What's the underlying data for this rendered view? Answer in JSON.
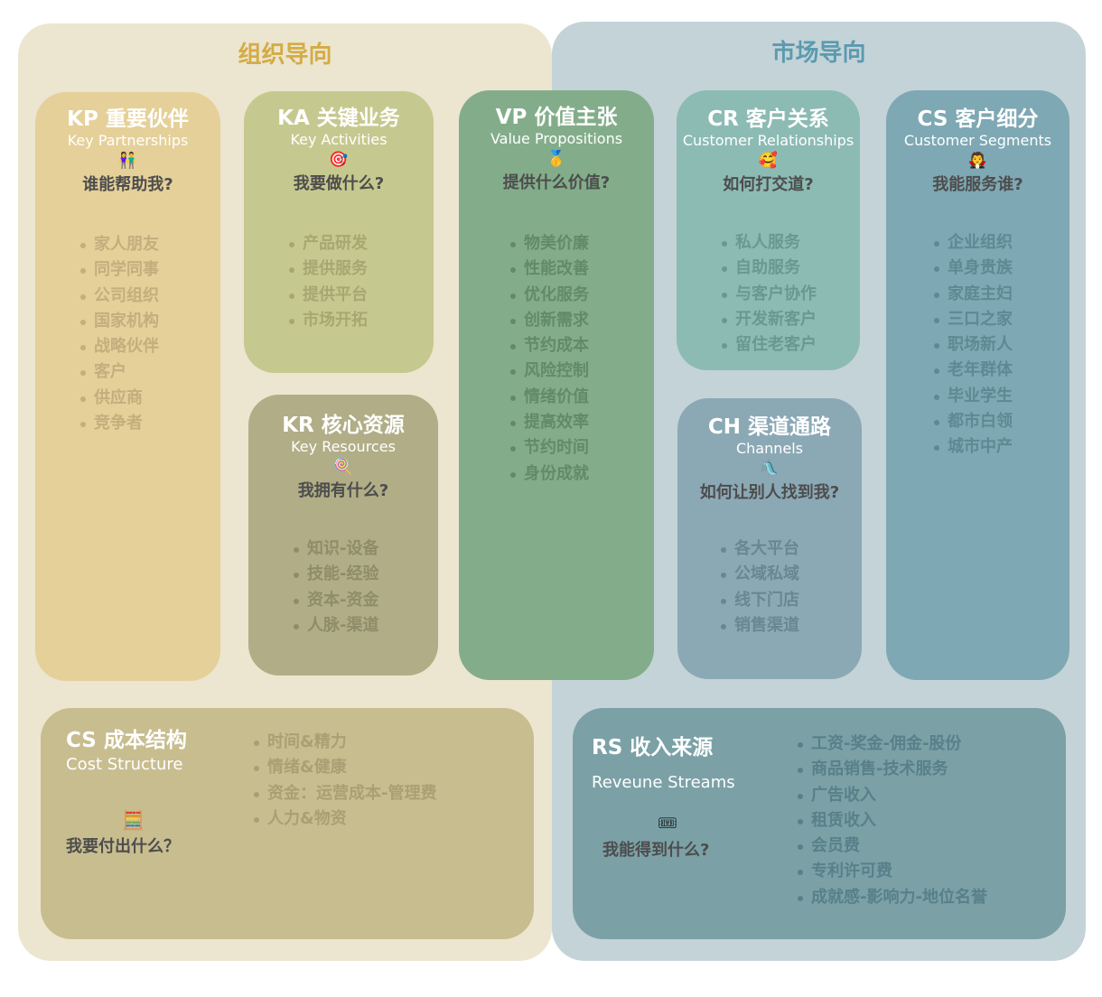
{
  "regions": {
    "organization": {
      "title": "组织导向",
      "color": "#d4ac45"
    },
    "market": {
      "title": "市场导向",
      "color": "#5b9aaf"
    }
  },
  "cards": {
    "kp": {
      "title": "KP 重要伙伴",
      "subtitle": "Key Partnerships",
      "icon": "👫",
      "question": "谁能帮助我?",
      "items": [
        "家人朋友",
        "同学同事",
        "公司组织",
        "国家机构",
        "战略伙伴",
        "客户",
        "供应商",
        "竞争者"
      ]
    },
    "ka": {
      "title": "KA 关键业务",
      "subtitle": "Key Activities",
      "icon": "🎯",
      "question": "我要做什么?",
      "items": [
        "产品研发",
        "提供服务",
        "提供平台",
        "市场开拓"
      ]
    },
    "kr": {
      "title": "KR 核心资源",
      "subtitle": "Key Resources",
      "icon": "🍭",
      "question": "我拥有什么?",
      "items": [
        "知识-设备",
        "技能-经验",
        "资本-资金",
        "人脉-渠道"
      ]
    },
    "vp": {
      "title": "VP 价值主张",
      "subtitle": "Value Propositions",
      "icon": "🥇",
      "question": "提供什么价值?",
      "items": [
        "物美价廉",
        "性能改善",
        "优化服务",
        "创新需求",
        "节约成本",
        "风险控制",
        "情绪价值",
        "提高效率",
        "节约时间",
        "身份成就"
      ]
    },
    "cr": {
      "title": "CR 客户关系",
      "subtitle": "Customer Relationships",
      "icon": "🥰",
      "question": "如何打交道?",
      "items": [
        "私人服务",
        "自助服务",
        "与客户协作",
        "开发新客户",
        "留住老客户"
      ]
    },
    "ch": {
      "title": "CH 渠道通路",
      "subtitle": "Channels",
      "icon": "🛝",
      "question": "如何让别人找到我?",
      "items": [
        "各大平台",
        "公域私域",
        "线下门店",
        "销售渠道"
      ]
    },
    "cs": {
      "title": "CS 客户细分",
      "subtitle": "Customer Segments",
      "icon": "🧛",
      "question": "我能服务谁?",
      "items": [
        "企业组织",
        "单身贵族",
        "家庭主妇",
        "三口之家",
        "职场新人",
        "老年群体",
        "毕业学生",
        "都市白领",
        "城市中产"
      ]
    },
    "cost": {
      "title": "CS 成本结构",
      "subtitle": "Cost Structure",
      "icon": "🧮",
      "question": "我要付出什么？",
      "items": [
        "时间&精力",
        "情绪&健康",
        "资金：运营成本-管理费",
        "人力&物资"
      ]
    },
    "rs": {
      "title": "RS 收入来源",
      "subtitle": "Reveune Streams",
      "icon": "🎟",
      "question": "我能得到什么?",
      "items": [
        "工资-奖金-佣金-股份",
        "商品销售-技术服务",
        "广告收入",
        "租赁收入",
        "会员费",
        "专利许可费",
        "成就感-影响力-地位名誉"
      ]
    }
  }
}
